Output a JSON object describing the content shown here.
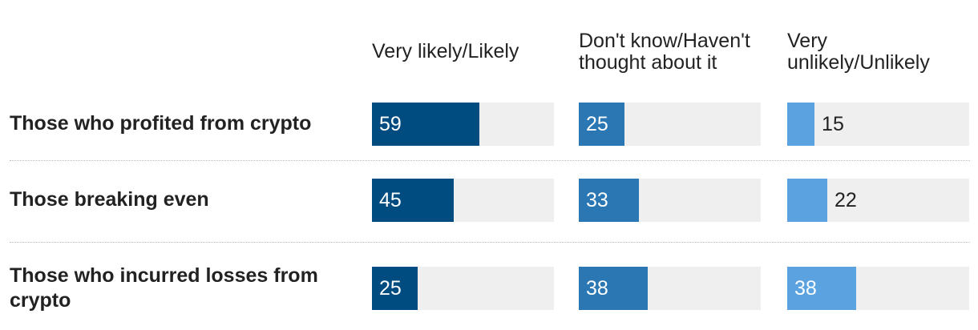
{
  "chart_data": {
    "type": "bar",
    "categories": [
      "Those who profited from crypto",
      "Those breaking even",
      "Those who incurred losses from crypto"
    ],
    "series": [
      {
        "name": "Very likely/Likely",
        "color": "#004c80",
        "values": [
          59,
          45,
          25
        ]
      },
      {
        "name": "Don't know/Haven't thought about it",
        "color": "#2a77b3",
        "values": [
          25,
          33,
          38
        ]
      },
      {
        "name": "Very unlikely/Unlikely",
        "color": "#5ba3e0",
        "values": [
          15,
          22,
          38
        ]
      }
    ],
    "xlim": [
      0,
      100
    ]
  }
}
